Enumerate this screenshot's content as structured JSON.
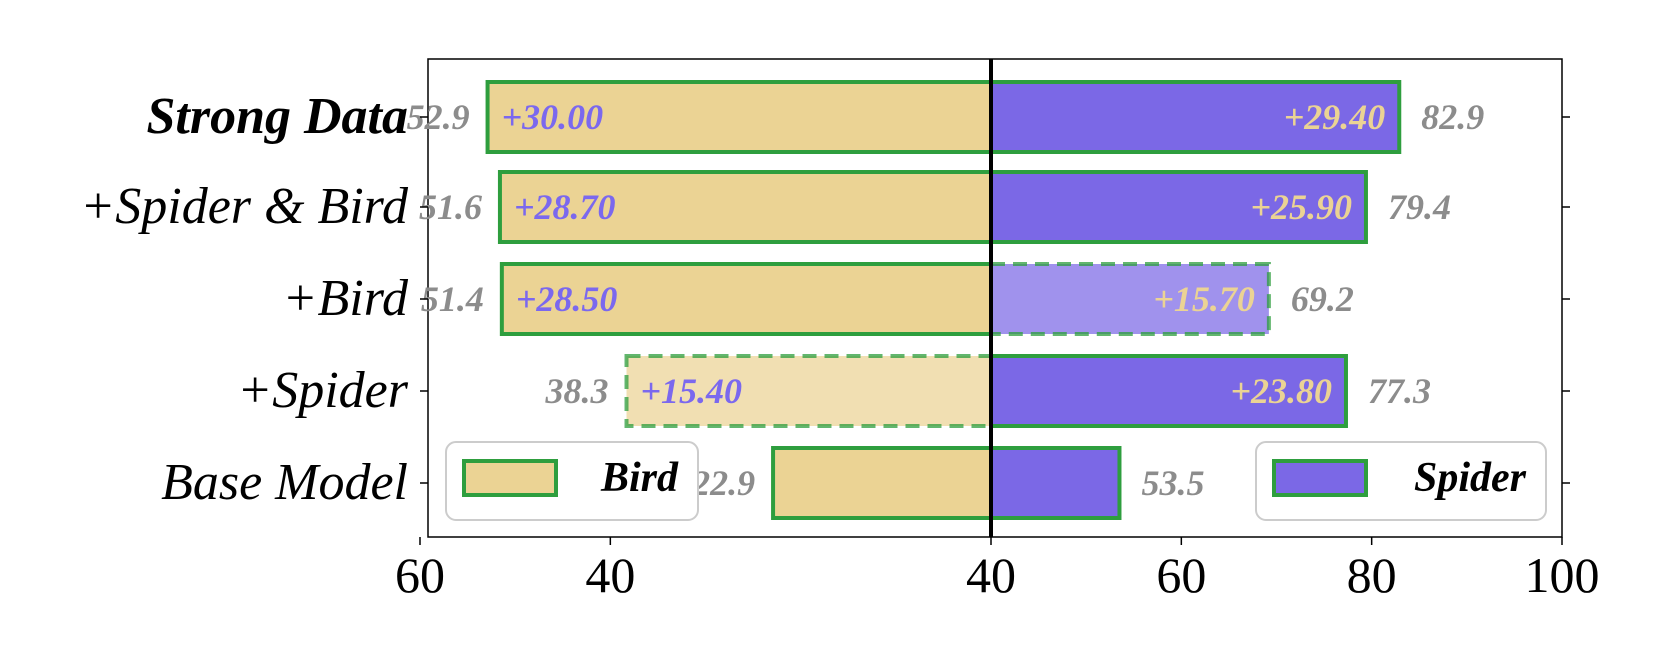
{
  "chart_data": {
    "type": "bar",
    "orientation": "horizontal-diverging",
    "categories": [
      "Strong Data",
      "+Spider & Bird",
      "+Bird",
      "+Spider",
      "Base Model"
    ],
    "category_bold": [
      true,
      false,
      false,
      false,
      false
    ],
    "left_axis": {
      "xlim": [
        60,
        0
      ],
      "ticks": [
        "60",
        "40"
      ]
    },
    "right_axis": {
      "xlim": [
        40,
        100
      ],
      "ticks": [
        "40",
        "60",
        "80",
        "100"
      ]
    },
    "series": [
      {
        "name": "Bird",
        "side": "left",
        "values": [
          52.9,
          51.6,
          51.4,
          38.3,
          22.9
        ],
        "value_labels": [
          "52.9",
          "51.6",
          "51.4",
          "38.3",
          "22.9"
        ],
        "gain_labels": [
          "+30.00",
          "+28.70",
          "+28.50",
          "+15.40",
          ""
        ],
        "dashed": [
          false,
          false,
          false,
          true,
          false
        ],
        "faded": [
          false,
          false,
          false,
          true,
          false
        ],
        "fill_color": "#ebd394",
        "gain_color": "#7b68ee"
      },
      {
        "name": "Spider",
        "side": "right",
        "values": [
          82.9,
          79.4,
          69.2,
          77.3,
          53.5
        ],
        "value_labels": [
          "82.9",
          "79.4",
          "69.2",
          "77.3",
          "53.5"
        ],
        "gain_labels": [
          "+29.40",
          "+25.90",
          "+15.70",
          "+23.80",
          ""
        ],
        "dashed": [
          false,
          false,
          true,
          false,
          false
        ],
        "faded": [
          false,
          false,
          true,
          false,
          false
        ],
        "fill_color": "#7b68e6",
        "gain_color": "#ebd394"
      }
    ],
    "legend": [
      {
        "label": "Bird",
        "placement": "lower-left"
      },
      {
        "label": "Spider",
        "placement": "lower-right"
      }
    ],
    "colors": {
      "edge": "#2e9e3e",
      "value_label": "#8c8c8c",
      "center_line": "#000000"
    }
  }
}
